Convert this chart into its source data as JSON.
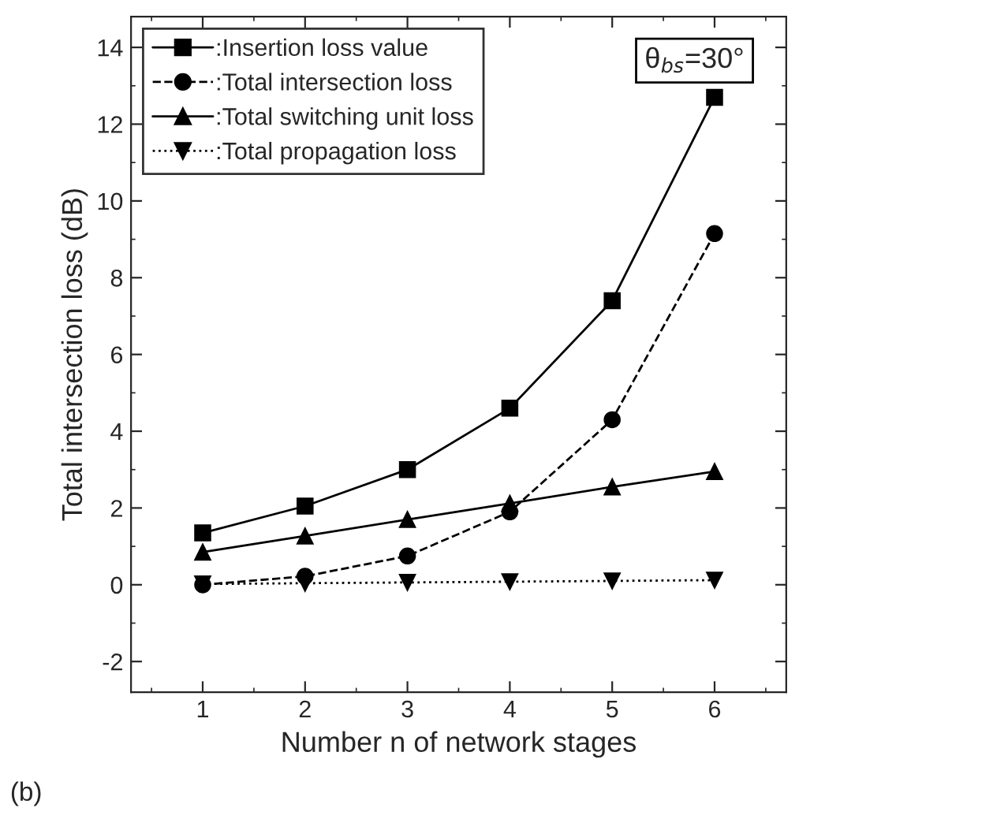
{
  "chart_data": {
    "type": "line",
    "xlabel": "Number n of network stages",
    "ylabel": "Total intersection loss (dB)",
    "x": [
      1,
      2,
      3,
      4,
      5,
      6
    ],
    "series": [
      {
        "name": ":Insertion loss value",
        "color": "#000000",
        "values": [
          1.35,
          2.05,
          3.0,
          4.6,
          7.4,
          12.7
        ],
        "marker": "square",
        "line_style": "solid"
      },
      {
        "name": ":Total intersection loss",
        "color": "#000000",
        "values": [
          0.0,
          0.22,
          0.75,
          1.9,
          4.3,
          9.15
        ],
        "marker": "circle",
        "line_style": "dashed"
      },
      {
        "name": ":Total switching unit loss",
        "color": "#000000",
        "values": [
          0.85,
          1.27,
          1.7,
          2.12,
          2.55,
          2.95
        ],
        "marker": "triangle",
        "line_style": "solid"
      },
      {
        "name": ":Total propagation loss",
        "color": "#000000",
        "values": [
          0.02,
          0.04,
          0.06,
          0.08,
          0.1,
          0.12
        ],
        "marker": "triangle_down",
        "line_style": "dotted"
      }
    ],
    "xlim": [
      0.3,
      6.7
    ],
    "ylim": [
      -2.8,
      14.8
    ],
    "xticks": [
      1,
      2,
      3,
      4,
      5,
      6
    ],
    "yticks": [
      -2,
      0,
      2,
      4,
      6,
      8,
      10,
      12,
      14
    ],
    "grid": false,
    "legend": "top left",
    "annotations": [
      "θ$_{bs}$=30°",
      "(b)"
    ]
  }
}
